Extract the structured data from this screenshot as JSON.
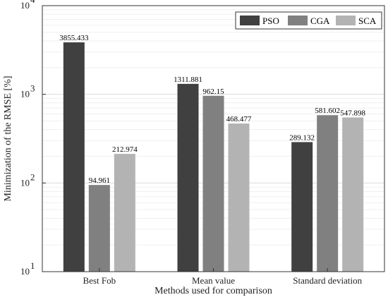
{
  "chart_data": {
    "type": "bar",
    "title": "",
    "xlabel": "Methods used for comparison",
    "ylabel": "Minimization of the RMSE [%]",
    "yscale": "log",
    "ylim": [
      10,
      10000
    ],
    "ytick_values": [
      10,
      100,
      1000,
      10000
    ],
    "ytick_exponents": [
      "1",
      "2",
      "3",
      "4"
    ],
    "ytick_base": "10",
    "grid": true,
    "legend_position": "top-right",
    "categories": [
      "Best Fob",
      "Mean value",
      "Standard deviation"
    ],
    "series": [
      {
        "name": "PSO",
        "color": "#404040",
        "values": [
          3855.433,
          1311.881,
          289.132
        ],
        "labels": [
          "3855.433",
          "1311.881",
          "289.132"
        ]
      },
      {
        "name": "CGA",
        "color": "#808080",
        "values": [
          94.961,
          962.15,
          581.602
        ],
        "labels": [
          "94.961",
          "962.15",
          "581.602"
        ]
      },
      {
        "name": "SCA",
        "color": "#b3b3b3",
        "values": [
          212.974,
          468.477,
          547.898
        ],
        "labels": [
          "212.974",
          "468.477",
          "547.898"
        ]
      }
    ]
  }
}
